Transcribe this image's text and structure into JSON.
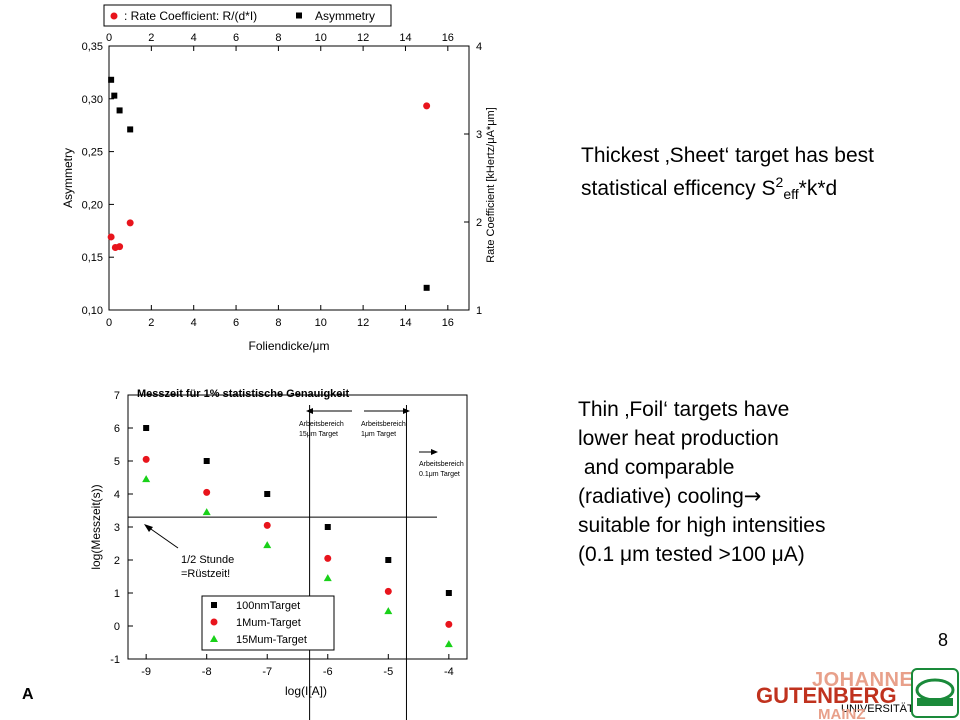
{
  "chart_data": [
    {
      "type": "scatter",
      "xlabel": "Foliendicke/μm",
      "ylabel": "Asymmetry",
      "y2label": "Rate Coefficient [kHertz/μA*μm]",
      "xlim": [
        0,
        17
      ],
      "ylim": [
        0.1,
        0.35
      ],
      "y2lim": [
        1,
        4
      ],
      "xticks": [
        "0",
        "2",
        "4",
        "6",
        "8",
        "10",
        "12",
        "14",
        "16"
      ],
      "yticks": [
        "0,10",
        "0,15",
        "0,20",
        "0,25",
        "0,30",
        "0,35"
      ],
      "y2ticks": [
        "1",
        "2",
        "3",
        "4"
      ],
      "legend_location": "top",
      "series": [
        {
          "name": ": Rate Coefficient: R/(d*I)",
          "axis": "right",
          "marker": "circle",
          "color": "#e8141c",
          "x": [
            0.1,
            0.3,
            0.5,
            1.0,
            15.0
          ],
          "y": [
            1.83,
            1.71,
            1.72,
            1.99,
            3.32
          ]
        },
        {
          "name": "Asymmetry",
          "axis": "left",
          "marker": "square",
          "color": "#000000",
          "x": [
            0.1,
            0.25,
            0.5,
            1.0,
            15.0
          ],
          "y": [
            0.318,
            0.303,
            0.289,
            0.271,
            0.121
          ]
        }
      ]
    },
    {
      "type": "scatter",
      "title": "Messzeit für 1% statistische Genauigkeit",
      "xlabel": "log(I[A])",
      "ylabel": "log(Messzeit(s))",
      "xlim": [
        -9.3,
        -3.7
      ],
      "ylim": [
        -1,
        7
      ],
      "xticks": [
        "-9",
        "-8",
        "-7",
        "-6",
        "-5",
        "-4"
      ],
      "yticks": [
        "-1",
        "0",
        "1",
        "2",
        "3",
        "4",
        "5",
        "6",
        "7"
      ],
      "legend_location": "bottom-left",
      "series": [
        {
          "name": "100nmTarget",
          "marker": "square",
          "color": "#000000",
          "x": [
            -9,
            -8,
            -7,
            -6,
            -5,
            -4
          ],
          "y": [
            6.0,
            5.0,
            4.0,
            3.0,
            2.0,
            1.0
          ]
        },
        {
          "name": "1Mum-Target",
          "marker": "circle",
          "color": "#e8141c",
          "x": [
            -9,
            -8,
            -7,
            -6,
            -5,
            -4
          ],
          "y": [
            5.05,
            4.05,
            3.05,
            2.05,
            1.05,
            0.05
          ]
        },
        {
          "name": "15Mum-Target",
          "marker": "triangle",
          "color": "#19d119",
          "x": [
            -9,
            -8,
            -7,
            -6,
            -5,
            -4
          ],
          "y": [
            4.45,
            3.45,
            2.45,
            1.45,
            0.45,
            -0.55
          ]
        }
      ],
      "reference_lines": {
        "horizontal_y": 3.3,
        "vertical_x": [
          -6.3,
          -4.7
        ]
      },
      "annotations": {
        "half_hour": [
          "1/2 Stunde",
          "=Rüstzeit!"
        ],
        "range_15": [
          "Arbeitsbereich",
          "15μm Target"
        ],
        "range_1": [
          "Arbeitsbereich",
          "1μm Target"
        ],
        "range_01": [
          "Arbeitsbereich",
          "0.1μm Target"
        ]
      }
    }
  ],
  "text": {
    "note1": [
      "Thickest ‚Sheet‘ target has best",
      "statistical efficency S"
    ],
    "note1_sup": "2",
    "note1_sub": "eff",
    "note1_tail": "*k*d",
    "note2": [
      "Thin ‚Foil‘ targets have",
      "lower heat production",
      " and comparable",
      "(radiative) cooling",
      "suitable for high intensities",
      "",
      "(0.1 μm tested >100 μA)"
    ],
    "arrow_glyph": "→",
    "page_number": "8",
    "footer_letter": "A"
  },
  "logo": {
    "line1": "JOHANNES",
    "line2": "GUTENBERG",
    "line3": "UNIVERSITÄT",
    "line4": "MAINZ",
    "line1_color": "#e8a08a",
    "line2_color": "#c0321e"
  }
}
